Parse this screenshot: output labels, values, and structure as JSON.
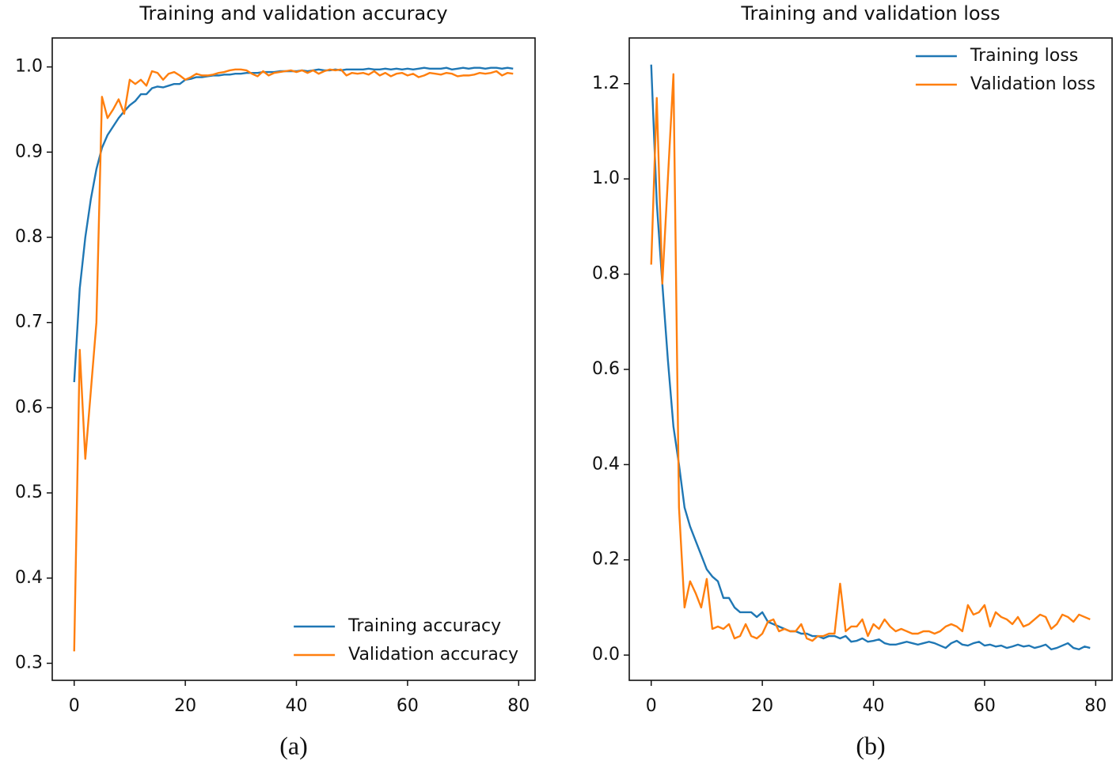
{
  "chart_data": [
    {
      "type": "line",
      "title": "Training and validation accuracy",
      "caption": "(a)",
      "legend": "lower right",
      "grid": false,
      "x": [
        0,
        1,
        2,
        3,
        4,
        5,
        6,
        7,
        8,
        9,
        10,
        11,
        12,
        13,
        14,
        15,
        16,
        17,
        18,
        19,
        20,
        21,
        22,
        23,
        24,
        25,
        26,
        27,
        28,
        29,
        30,
        31,
        32,
        33,
        34,
        35,
        36,
        37,
        38,
        39,
        40,
        41,
        42,
        43,
        44,
        45,
        46,
        47,
        48,
        49,
        50,
        51,
        52,
        53,
        54,
        55,
        56,
        57,
        58,
        59,
        60,
        61,
        62,
        63,
        64,
        65,
        66,
        67,
        68,
        69,
        70,
        71,
        72,
        73,
        74,
        75,
        76,
        77,
        78,
        79
      ],
      "xlim": [
        -3.95,
        82.95
      ],
      "xticks": [
        0,
        20,
        40,
        60,
        80
      ],
      "ylim": [
        0.28,
        1.034
      ],
      "yticks": [
        0.3,
        0.4,
        0.5,
        0.6,
        0.7,
        0.8,
        0.9,
        {
          "value": 1,
          "label": "1.0"
        }
      ],
      "series": [
        {
          "name": "Training accuracy",
          "color": "#1f77b4",
          "values": [
            0.63,
            0.74,
            0.8,
            0.845,
            0.88,
            0.905,
            0.92,
            0.93,
            0.94,
            0.948,
            0.955,
            0.96,
            0.968,
            0.968,
            0.975,
            0.977,
            0.976,
            0.978,
            0.98,
            0.98,
            0.985,
            0.986,
            0.988,
            0.988,
            0.989,
            0.99,
            0.99,
            0.991,
            0.991,
            0.992,
            0.992,
            0.993,
            0.993,
            0.993,
            0.994,
            0.994,
            0.994,
            0.995,
            0.995,
            0.995,
            0.995,
            0.996,
            0.995,
            0.996,
            0.997,
            0.996,
            0.996,
            0.997,
            0.996,
            0.997,
            0.997,
            0.997,
            0.997,
            0.998,
            0.997,
            0.997,
            0.998,
            0.997,
            0.998,
            0.997,
            0.998,
            0.997,
            0.998,
            0.999,
            0.998,
            0.998,
            0.998,
            0.999,
            0.997,
            0.998,
            0.999,
            0.998,
            0.999,
            0.999,
            0.998,
            0.999,
            0.999,
            0.998,
            0.999,
            0.998
          ]
        },
        {
          "name": "Validation accuracy",
          "color": "#ff7f0e",
          "values": [
            0.314,
            0.668,
            0.54,
            0.62,
            0.7,
            0.965,
            0.94,
            0.95,
            0.962,
            0.945,
            0.985,
            0.98,
            0.985,
            0.978,
            0.995,
            0.993,
            0.985,
            0.992,
            0.994,
            0.99,
            0.985,
            0.988,
            0.992,
            0.99,
            0.99,
            0.991,
            0.993,
            0.994,
            0.996,
            0.997,
            0.997,
            0.996,
            0.992,
            0.989,
            0.995,
            0.99,
            0.993,
            0.994,
            0.995,
            0.996,
            0.994,
            0.996,
            0.993,
            0.996,
            0.992,
            0.995,
            0.997,
            0.996,
            0.997,
            0.99,
            0.993,
            0.992,
            0.993,
            0.991,
            0.995,
            0.99,
            0.993,
            0.989,
            0.992,
            0.993,
            0.99,
            0.992,
            0.988,
            0.99,
            0.993,
            0.992,
            0.991,
            0.993,
            0.992,
            0.989,
            0.99,
            0.99,
            0.991,
            0.993,
            0.992,
            0.993,
            0.995,
            0.99,
            0.993,
            0.992
          ]
        }
      ]
    },
    {
      "type": "line",
      "title": "Training and validation loss",
      "caption": "(b)",
      "legend": "upper right",
      "grid": false,
      "x": [
        0,
        1,
        2,
        3,
        4,
        5,
        6,
        7,
        8,
        9,
        10,
        11,
        12,
        13,
        14,
        15,
        16,
        17,
        18,
        19,
        20,
        21,
        22,
        23,
        24,
        25,
        26,
        27,
        28,
        29,
        30,
        31,
        32,
        33,
        34,
        35,
        36,
        37,
        38,
        39,
        40,
        41,
        42,
        43,
        44,
        45,
        46,
        47,
        48,
        49,
        50,
        51,
        52,
        53,
        54,
        55,
        56,
        57,
        58,
        59,
        60,
        61,
        62,
        63,
        64,
        65,
        66,
        67,
        68,
        69,
        70,
        71,
        72,
        73,
        74,
        75,
        76,
        77,
        78,
        79
      ],
      "xlim": [
        -3.95,
        82.95
      ],
      "xticks": [
        0,
        20,
        40,
        60,
        80
      ],
      "ylim": [
        -0.053,
        1.296
      ],
      "yticks": [
        {
          "value": 0,
          "label": "0.0"
        },
        0.2,
        0.4,
        0.6,
        0.8,
        {
          "value": 1,
          "label": "1.0"
        },
        1.2
      ],
      "series": [
        {
          "name": "Training loss",
          "color": "#1f77b4",
          "values": [
            1.24,
            0.95,
            0.78,
            0.62,
            0.48,
            0.4,
            0.31,
            0.27,
            0.24,
            0.21,
            0.18,
            0.165,
            0.155,
            0.12,
            0.12,
            0.1,
            0.09,
            0.09,
            0.09,
            0.08,
            0.09,
            0.07,
            0.065,
            0.06,
            0.055,
            0.05,
            0.05,
            0.045,
            0.045,
            0.04,
            0.04,
            0.035,
            0.04,
            0.04,
            0.035,
            0.04,
            0.028,
            0.03,
            0.035,
            0.028,
            0.03,
            0.033,
            0.025,
            0.022,
            0.022,
            0.025,
            0.028,
            0.025,
            0.022,
            0.025,
            0.028,
            0.025,
            0.02,
            0.015,
            0.025,
            0.03,
            0.022,
            0.02,
            0.025,
            0.028,
            0.02,
            0.022,
            0.018,
            0.02,
            0.015,
            0.018,
            0.022,
            0.018,
            0.02,
            0.015,
            0.018,
            0.022,
            0.012,
            0.015,
            0.02,
            0.025,
            0.015,
            0.012,
            0.018,
            0.015
          ]
        },
        {
          "name": "Validation loss",
          "color": "#ff7f0e",
          "values": [
            0.82,
            1.17,
            0.78,
            1.0,
            1.22,
            0.31,
            0.1,
            0.155,
            0.13,
            0.1,
            0.16,
            0.055,
            0.06,
            0.055,
            0.065,
            0.035,
            0.04,
            0.065,
            0.04,
            0.035,
            0.045,
            0.07,
            0.075,
            0.05,
            0.055,
            0.05,
            0.05,
            0.065,
            0.035,
            0.03,
            0.04,
            0.04,
            0.045,
            0.045,
            0.15,
            0.05,
            0.06,
            0.06,
            0.075,
            0.04,
            0.065,
            0.055,
            0.075,
            0.06,
            0.05,
            0.055,
            0.05,
            0.045,
            0.045,
            0.05,
            0.05,
            0.045,
            0.05,
            0.06,
            0.065,
            0.06,
            0.05,
            0.105,
            0.085,
            0.09,
            0.105,
            0.06,
            0.09,
            0.08,
            0.075,
            0.065,
            0.08,
            0.06,
            0.065,
            0.075,
            0.085,
            0.08,
            0.055,
            0.065,
            0.085,
            0.08,
            0.07,
            0.085,
            0.08,
            0.075
          ]
        }
      ]
    }
  ]
}
